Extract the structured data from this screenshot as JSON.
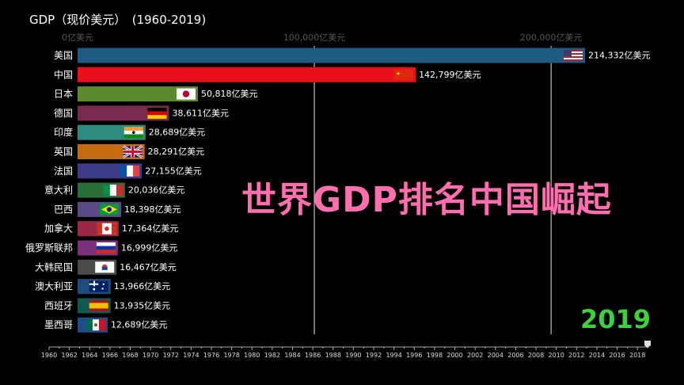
{
  "title": "GDP（现价美元）　(1960-2019)",
  "overlay_text": "世界GDP排名中国崛起",
  "year_label": "2019",
  "chart_data": {
    "type": "bar",
    "orientation": "horizontal",
    "unit_suffix": "亿美元",
    "xlim": [
      0,
      214332
    ],
    "x_ticks": [
      0,
      100000,
      200000
    ],
    "x_tick_labels": [
      "0亿美元",
      "100,000亿美元",
      "200,000亿美元"
    ],
    "categories": [
      "美国",
      "中国",
      "日本",
      "德国",
      "印度",
      "英国",
      "法国",
      "意大利",
      "巴西",
      "加拿大",
      "俄罗斯联邦",
      "大韩民国",
      "澳大利亚",
      "西班牙",
      "墨西哥"
    ],
    "values": [
      214332,
      142799,
      50818,
      38611,
      28689,
      28291,
      27155,
      20036,
      18398,
      17364,
      16999,
      16467,
      13966,
      13935,
      12689
    ],
    "value_labels": [
      "214,332亿美元",
      "142,799亿美元",
      "50,818亿美元",
      "38,611亿美元",
      "28,689亿美元",
      "28,291亿美元",
      "27,155亿美元",
      "20,036亿美元",
      "18,398亿美元",
      "17,364亿美元",
      "16,999亿美元",
      "16,467亿美元",
      "13,966亿美元",
      "13,935亿美元",
      "12,689亿美元"
    ],
    "colors": [
      "#1f5a80",
      "#e8101a",
      "#5e8a2e",
      "#7a2a4e",
      "#2f8a80",
      "#c46a10",
      "#3b3b8a",
      "#2a6e3a",
      "#5a4a86",
      "#9a2a44",
      "#7c2f7a",
      "#4a4a4a",
      "#1f4d7a",
      "#0f5a52",
      "#1f4d8a"
    ],
    "flags": [
      "us",
      "cn",
      "jp",
      "de",
      "in",
      "gb",
      "fr",
      "it",
      "br",
      "ca",
      "ru",
      "kr",
      "au",
      "es",
      "mx"
    ],
    "timeline": {
      "start": 1960,
      "end": 2019,
      "current": 2019,
      "tick_labels": [
        "1960",
        "1962",
        "1964",
        "1966",
        "1968",
        "1970",
        "1972",
        "1974",
        "1976",
        "1978",
        "1980",
        "1982",
        "1984",
        "1986",
        "1988",
        "1990",
        "1992",
        "1994",
        "1996",
        "1998",
        "2000",
        "2002",
        "2004",
        "2006",
        "2008",
        "2010",
        "2012",
        "2014",
        "2016",
        "2018"
      ]
    }
  }
}
